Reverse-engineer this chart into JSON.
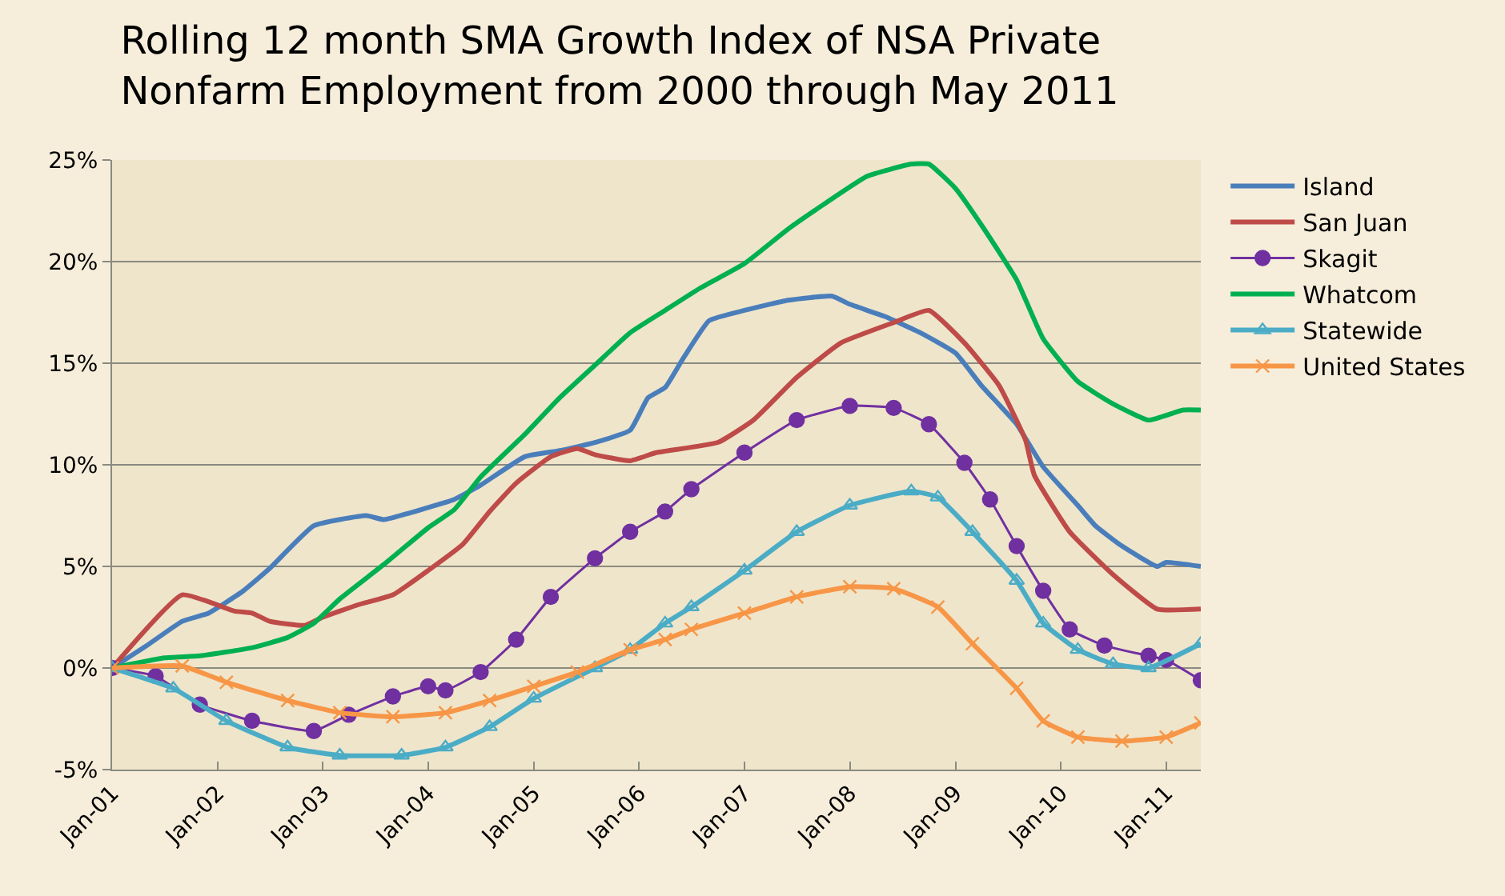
{
  "chart_data": {
    "type": "line",
    "title": "Rolling 12 month SMA Growth Index of NSA Private Nonfarm Employment from 2000 through May 2011",
    "xlim": [
      "2001-01",
      "2011-05"
    ],
    "xticks": [
      {
        "value": "2001-01",
        "label": "Jan-01"
      },
      {
        "value": "2002-01",
        "label": "Jan-02"
      },
      {
        "value": "2003-01",
        "label": "Jan-03"
      },
      {
        "value": "2004-01",
        "label": "Jan-04"
      },
      {
        "value": "2005-01",
        "label": "Jan-05"
      },
      {
        "value": "2006-01",
        "label": "Jan-06"
      },
      {
        "value": "2007-01",
        "label": "Jan-07"
      },
      {
        "value": "2008-01",
        "label": "Jan-08"
      },
      {
        "value": "2009-01",
        "label": "Jan-09"
      },
      {
        "value": "2010-01",
        "label": "Jan-10"
      },
      {
        "value": "2011-01",
        "label": "Jan-11"
      }
    ],
    "ylim": [
      -5,
      25
    ],
    "yticks": [
      {
        "value": -5,
        "label": "-5%"
      },
      {
        "value": 0,
        "label": "0%"
      },
      {
        "value": 5,
        "label": "5%"
      },
      {
        "value": 10,
        "label": "10%"
      },
      {
        "value": 15,
        "label": "15%"
      },
      {
        "value": 20,
        "label": "20%"
      },
      {
        "value": 25,
        "label": "25%"
      }
    ],
    "grid": "y",
    "legend": "right",
    "line_style": "solid",
    "series": [
      {
        "name": "Island",
        "color": "#4a7ebb",
        "marker": "none",
        "x": [
          "2001-01",
          "2001-05",
          "2001-09",
          "2001-12",
          "2002-04",
          "2002-07",
          "2002-12",
          "2003-06",
          "2003-08",
          "2004-01",
          "2004-04",
          "2004-07",
          "2004-12",
          "2005-04",
          "2005-08",
          "2005-12",
          "2006-02",
          "2006-04",
          "2006-06",
          "2006-09",
          "2007-01",
          "2007-06",
          "2007-11",
          "2008-01",
          "2008-05",
          "2008-09",
          "2009-01",
          "2009-04",
          "2009-08",
          "2009-11",
          "2010-03",
          "2010-05",
          "2010-08",
          "2010-12",
          "2011-01",
          "2011-05"
        ],
        "values": [
          0,
          1.1,
          2.3,
          2.7,
          3.8,
          4.9,
          7.0,
          7.5,
          7.3,
          7.9,
          8.3,
          9.0,
          10.4,
          10.7,
          11.1,
          11.7,
          13.3,
          13.8,
          15.2,
          17.1,
          17.6,
          18.1,
          18.3,
          17.9,
          17.3,
          16.5,
          15.5,
          13.9,
          12.0,
          9.9,
          8.0,
          7.0,
          6.0,
          5.0,
          5.2,
          5.0
        ]
      },
      {
        "name": "San Juan",
        "color": "#be4b48",
        "marker": "none",
        "x": [
          "2001-01",
          "2001-09",
          "2002-03",
          "2002-05",
          "2002-07",
          "2002-11",
          "2003-01",
          "2003-05",
          "2003-09",
          "2004-01",
          "2004-05",
          "2004-08",
          "2004-11",
          "2005-03",
          "2005-06",
          "2005-08",
          "2005-12",
          "2006-03",
          "2006-10",
          "2007-02",
          "2007-07",
          "2007-12",
          "2008-06",
          "2008-10",
          "2009-02",
          "2009-06",
          "2009-09",
          "2009-10",
          "2010-02",
          "2010-07",
          "2010-12",
          "2011-05"
        ],
        "values": [
          0,
          3.6,
          2.8,
          2.7,
          2.3,
          2.1,
          2.5,
          3.1,
          3.6,
          4.8,
          6.1,
          7.7,
          9.1,
          10.4,
          10.8,
          10.5,
          10.2,
          10.6,
          11.1,
          12.2,
          14.3,
          16.0,
          17.0,
          17.6,
          16.0,
          13.9,
          11.2,
          9.5,
          6.7,
          4.6,
          2.9,
          2.9
        ]
      },
      {
        "name": "Skagit",
        "color": "#7030a0",
        "marker": "circle",
        "x": [
          "2001-01",
          "2001-06",
          "2001-11",
          "2002-05",
          "2002-12",
          "2003-04",
          "2003-09",
          "2004-01",
          "2004-03",
          "2004-07",
          "2004-11",
          "2005-03",
          "2005-08",
          "2005-12",
          "2006-04",
          "2006-07",
          "2007-01",
          "2007-07",
          "2008-01",
          "2008-06",
          "2008-10",
          "2009-02",
          "2009-05",
          "2009-08",
          "2009-11",
          "2010-02",
          "2010-06",
          "2010-11",
          "2011-01",
          "2011-05"
        ],
        "values": [
          0,
          -0.4,
          -1.8,
          -2.6,
          -3.1,
          -2.3,
          -1.4,
          -0.9,
          -1.1,
          -0.2,
          1.4,
          3.5,
          5.4,
          6.7,
          7.7,
          8.8,
          10.6,
          12.2,
          12.9,
          12.8,
          12.0,
          10.1,
          8.3,
          6.0,
          3.8,
          1.9,
          1.1,
          0.6,
          0.4,
          -0.6
        ]
      },
      {
        "name": "Whatcom",
        "color": "#00b050",
        "marker": "none",
        "x": [
          "2001-01",
          "2001-07",
          "2001-11",
          "2002-05",
          "2002-09",
          "2002-12",
          "2003-03",
          "2003-08",
          "2004-01",
          "2004-04",
          "2004-07",
          "2004-12",
          "2005-04",
          "2005-08",
          "2005-12",
          "2006-04",
          "2006-08",
          "2007-01",
          "2007-06",
          "2007-10",
          "2008-03",
          "2008-08",
          "2008-10",
          "2009-01",
          "2009-04",
          "2009-08",
          "2009-11",
          "2010-03",
          "2010-07",
          "2010-11",
          "2011-03",
          "2011-05"
        ],
        "values": [
          0,
          0.5,
          0.6,
          1.0,
          1.5,
          2.2,
          3.4,
          5.1,
          6.9,
          7.8,
          9.4,
          11.5,
          13.3,
          14.9,
          16.5,
          17.6,
          18.7,
          19.9,
          21.6,
          22.8,
          24.2,
          24.8,
          24.8,
          23.6,
          21.8,
          19.1,
          16.2,
          14.1,
          13.0,
          12.2,
          12.7,
          12.7
        ]
      },
      {
        "name": "Statewide",
        "color": "#4bacc6",
        "marker": "triangle",
        "x": [
          "2001-01",
          "2001-08",
          "2002-02",
          "2002-09",
          "2003-03",
          "2003-10",
          "2004-03",
          "2004-08",
          "2005-01",
          "2005-08",
          "2005-12",
          "2006-04",
          "2006-07",
          "2007-01",
          "2007-07",
          "2008-01",
          "2008-08",
          "2008-11",
          "2009-03",
          "2009-08",
          "2009-11",
          "2010-03",
          "2010-07",
          "2010-11",
          "2011-05"
        ],
        "values": [
          0,
          -1.0,
          -2.6,
          -3.9,
          -4.3,
          -4.3,
          -3.9,
          -2.9,
          -1.5,
          0,
          0.9,
          2.2,
          3.0,
          4.8,
          6.7,
          8.0,
          8.7,
          8.4,
          6.7,
          4.3,
          2.2,
          0.9,
          0.2,
          0,
          1.2
        ]
      },
      {
        "name": "United States",
        "color": "#f79646",
        "marker": "cross",
        "x": [
          "2001-01",
          "2001-09",
          "2002-02",
          "2002-09",
          "2003-03",
          "2003-09",
          "2004-03",
          "2004-08",
          "2005-01",
          "2005-06",
          "2005-12",
          "2006-04",
          "2006-07",
          "2007-01",
          "2007-07",
          "2008-01",
          "2008-06",
          "2008-11",
          "2009-03",
          "2009-08",
          "2009-11",
          "2010-03",
          "2010-08",
          "2011-01",
          "2011-05"
        ],
        "values": [
          0,
          0.1,
          -0.7,
          -1.6,
          -2.2,
          -2.4,
          -2.2,
          -1.6,
          -0.9,
          -0.2,
          0.9,
          1.4,
          1.9,
          2.7,
          3.5,
          4.0,
          3.9,
          3.0,
          1.2,
          -1.0,
          -2.6,
          -3.4,
          -3.6,
          -3.4,
          -2.7
        ]
      }
    ]
  }
}
